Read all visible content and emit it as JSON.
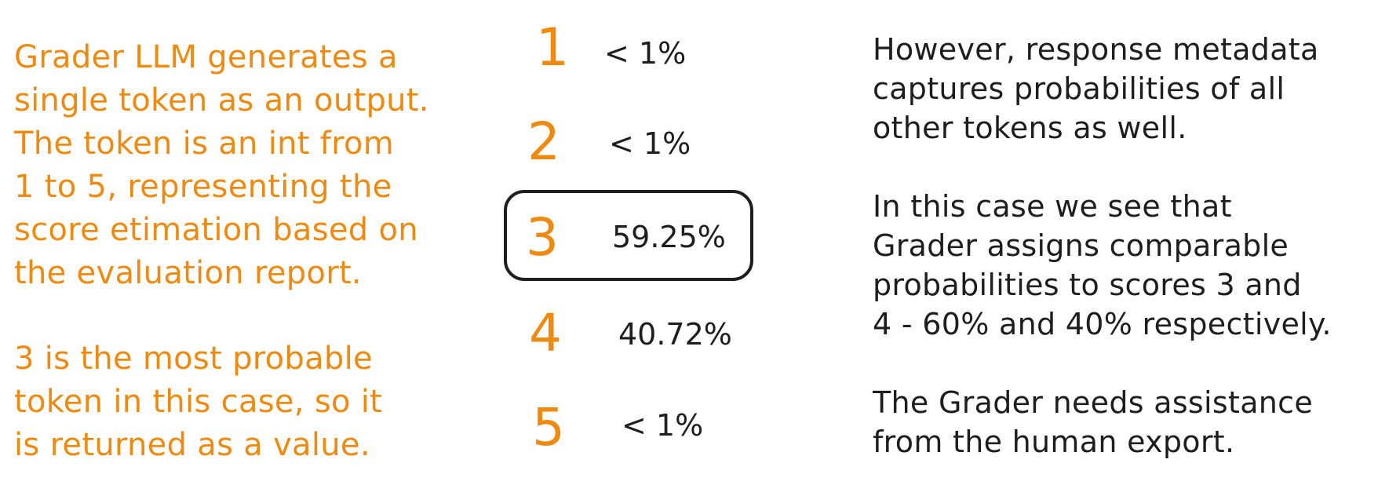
{
  "left_text": {
    "paragraph_1": "Grader LLM generates a\nsingle token as an output.\nThe token is an int from\n1 to 5, representing the\nscore etimation based on\nthe evaluation report.",
    "paragraph_2": "3 is the most probable\ntoken in this case, so it\nis returned as a value."
  },
  "tokens": [
    {
      "score": "1",
      "probability": "< 1%",
      "highlighted": false
    },
    {
      "score": "2",
      "probability": "< 1%",
      "highlighted": false
    },
    {
      "score": "3",
      "probability": "59.25%",
      "highlighted": true
    },
    {
      "score": "4",
      "probability": "40.72%",
      "highlighted": false
    },
    {
      "score": "5",
      "probability": "< 1%",
      "highlighted": false
    }
  ],
  "right_text": {
    "paragraph_1": "However, response metadata\ncaptures probabilities of all\nother tokens as well.",
    "paragraph_2": "In this case we see that\nGrader assigns comparable\nprobabilities to scores 3 and\n4 - 60% and 40% respectively.",
    "paragraph_3": "The Grader needs assistance\nfrom the human export."
  },
  "colors": {
    "accent": "#ee8a10",
    "ink": "#1e1e1e",
    "background": "#ffffff"
  }
}
